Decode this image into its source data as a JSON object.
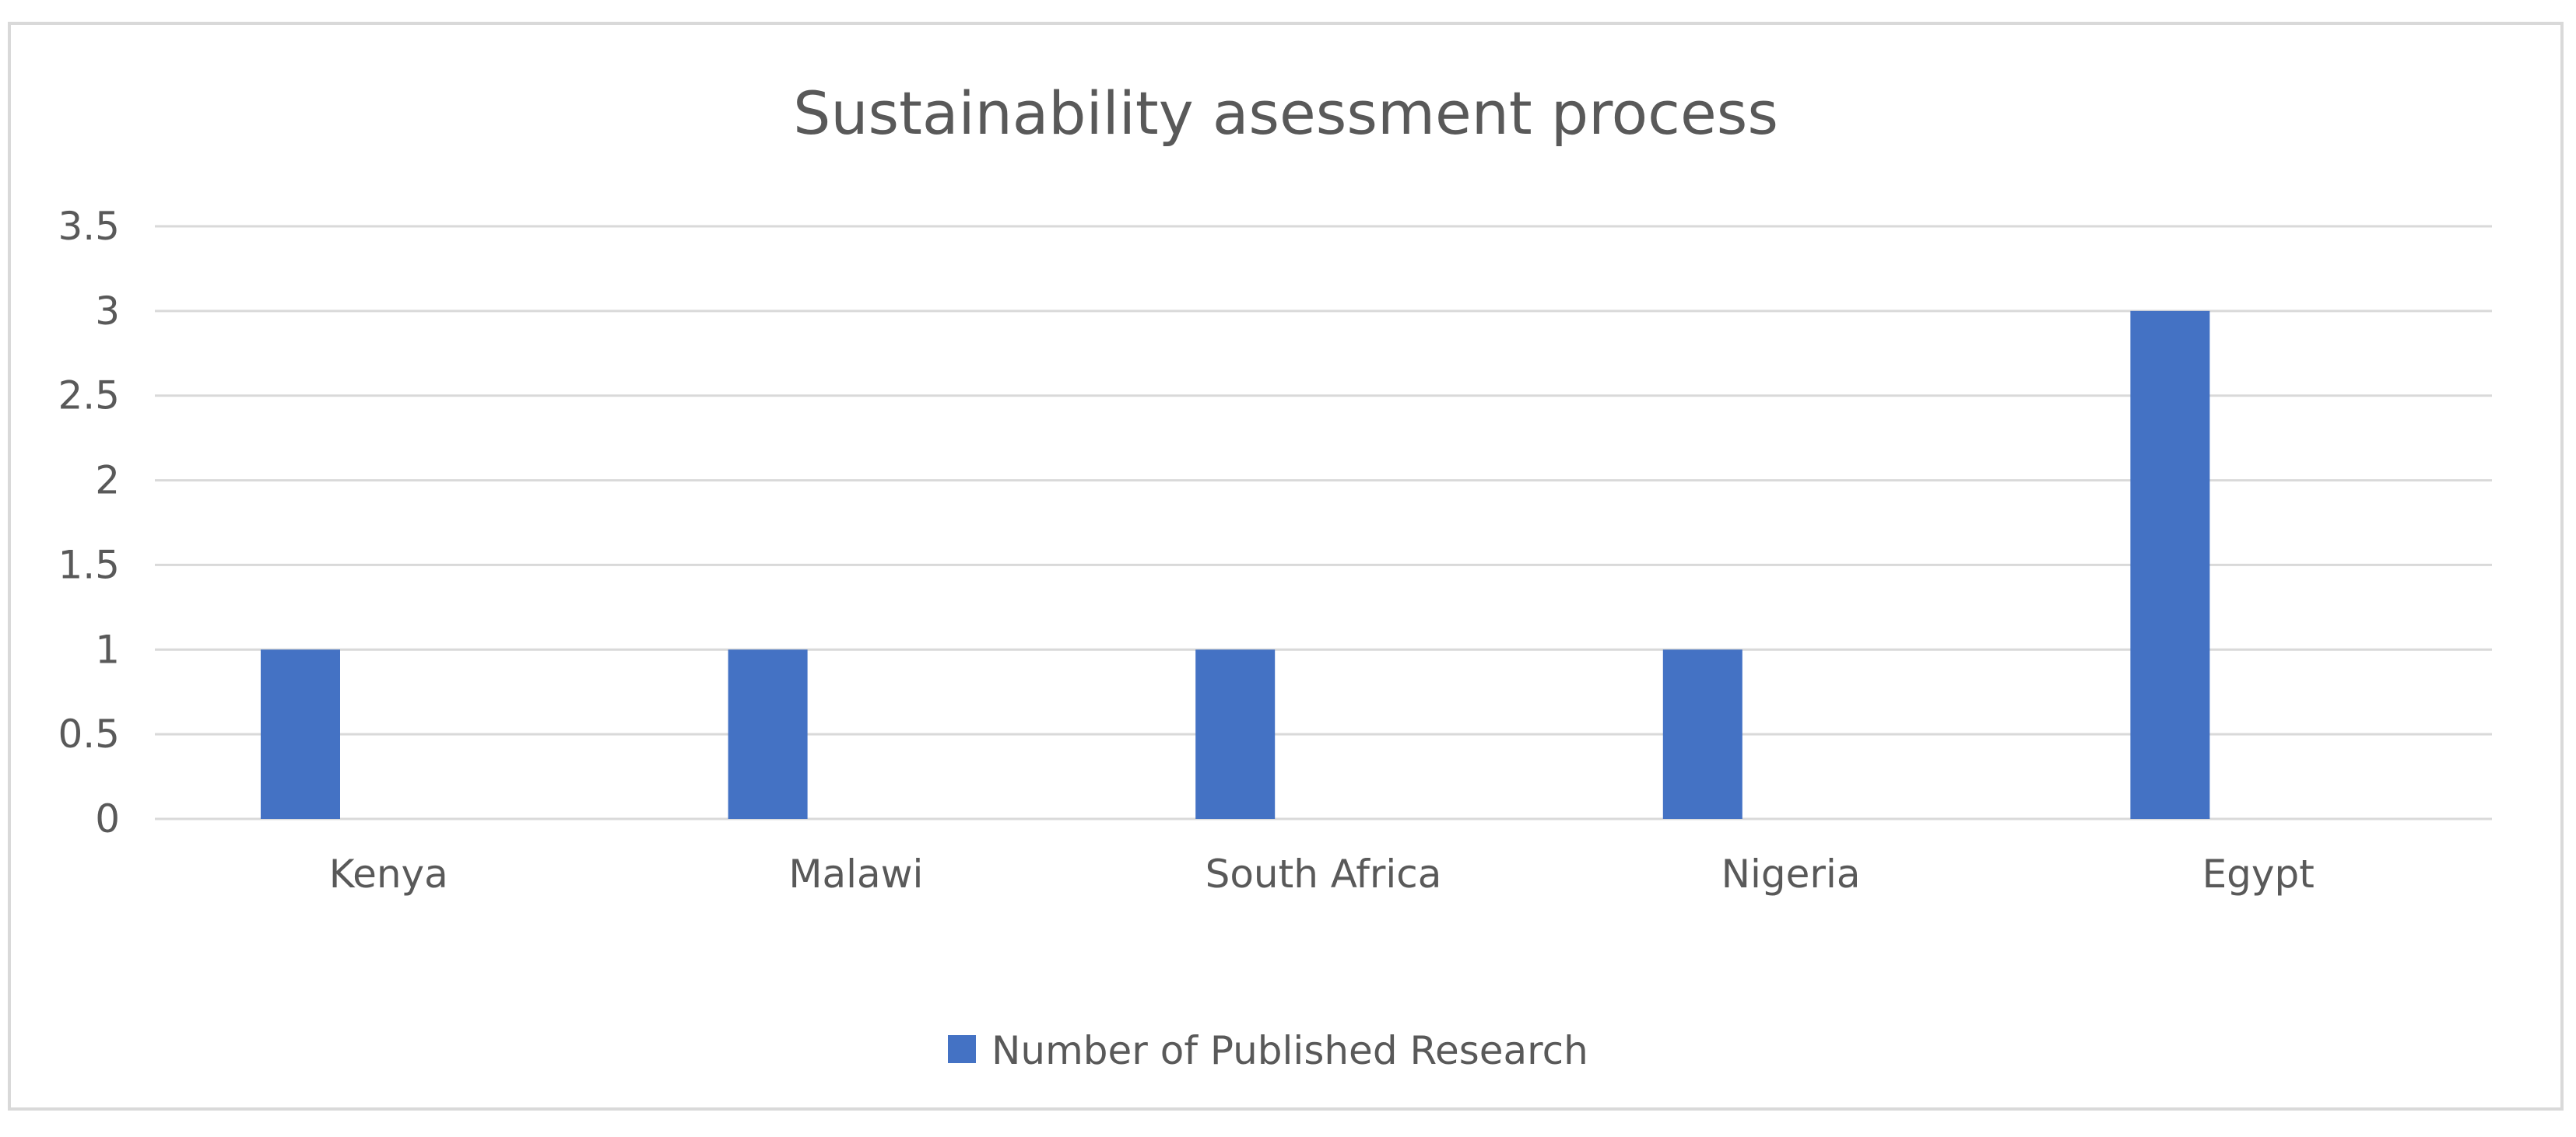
{
  "chart_data": {
    "type": "bar",
    "title": "Sustainability asessment  process",
    "categories": [
      "Kenya",
      "Malawi",
      "South Africa",
      "Nigeria",
      "Egypt"
    ],
    "series": [
      {
        "name": "Number of Published Research",
        "color": "#4472c4",
        "values": [
          1,
          1,
          1,
          1,
          3
        ]
      }
    ],
    "xlabel": "",
    "ylabel": "",
    "ylim": [
      0,
      3.5
    ],
    "yticks": [
      0,
      0.5,
      1,
      1.5,
      2,
      2.5,
      3,
      3.5
    ],
    "grid": true,
    "legend_position": "bottom"
  }
}
